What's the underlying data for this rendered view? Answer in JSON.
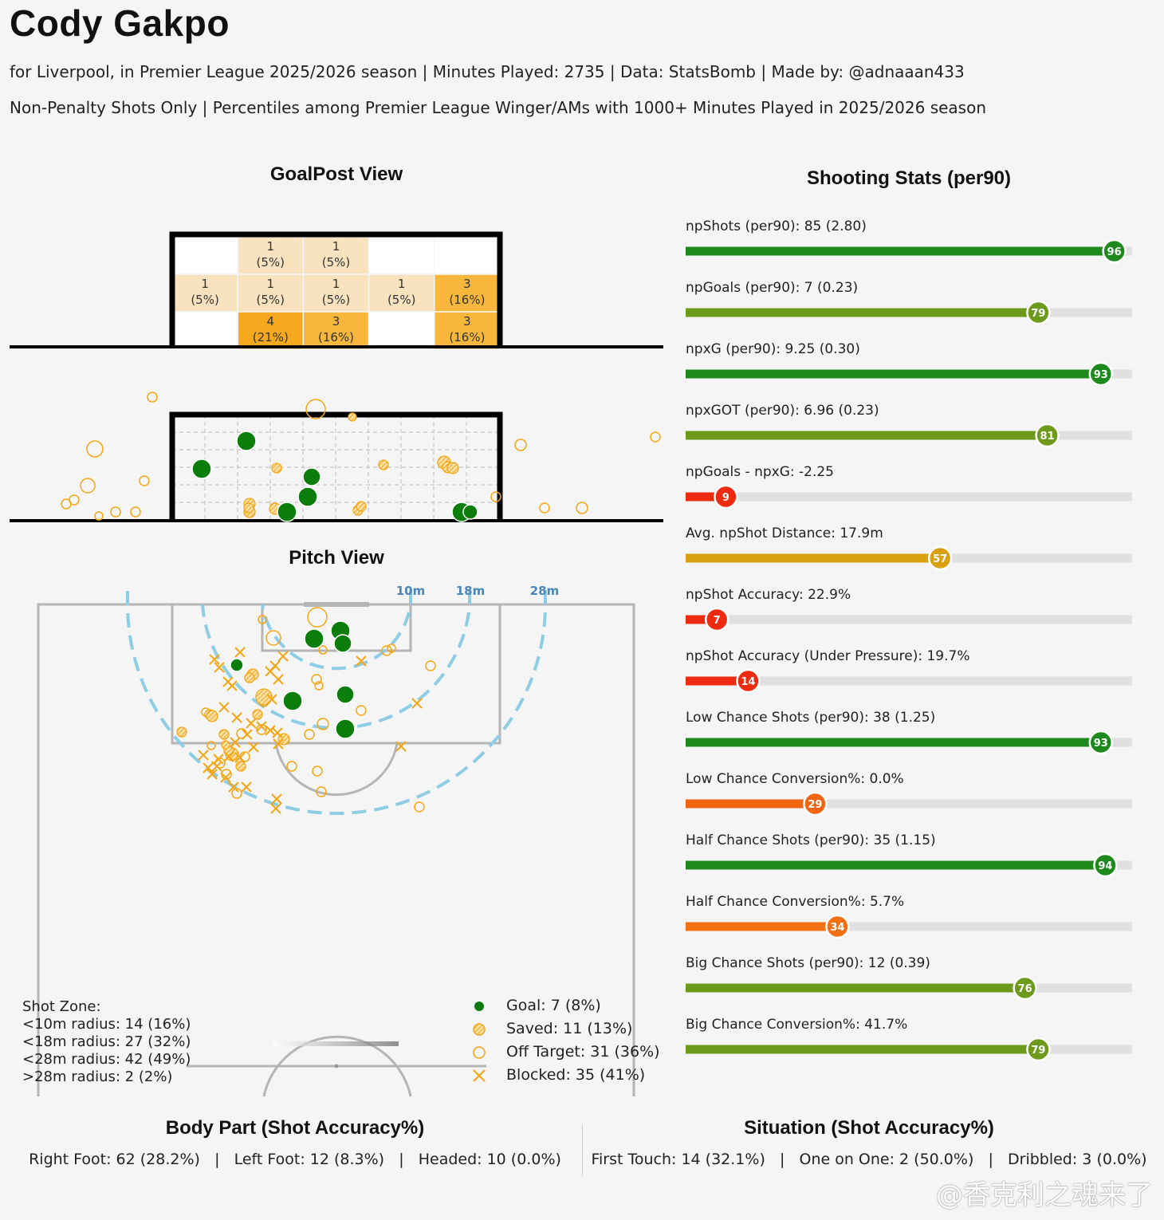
{
  "header": {
    "title": "Cody Gakpo",
    "subtitle1": "for Liverpool, in Premier League 2025/2026 season | Minutes Played: 2735 | Data: StatsBomb | Made by: @adnaaan433",
    "subtitle2": "Non-Penalty Shots Only | Percentiles among Premier League Winger/AMs with 1000+ Minutes Played in 2025/2026 season"
  },
  "goalpost": {
    "title": "GoalPost View",
    "zones": [
      {
        "row": 0,
        "col": 1,
        "count": "1",
        "pct": "(5%)",
        "shade": "light"
      },
      {
        "row": 0,
        "col": 2,
        "count": "1",
        "pct": "(5%)",
        "shade": "light"
      },
      {
        "row": 1,
        "col": 0,
        "count": "1",
        "pct": "(5%)",
        "shade": "light"
      },
      {
        "row": 1,
        "col": 1,
        "count": "1",
        "pct": "(5%)",
        "shade": "light"
      },
      {
        "row": 1,
        "col": 2,
        "count": "1",
        "pct": "(5%)",
        "shade": "light"
      },
      {
        "row": 1,
        "col": 3,
        "count": "1",
        "pct": "(5%)",
        "shade": "light"
      },
      {
        "row": 1,
        "col": 4,
        "count": "3",
        "pct": "(16%)",
        "shade": "mid"
      },
      {
        "row": 2,
        "col": 1,
        "count": "4",
        "pct": "(21%)",
        "shade": "dark"
      },
      {
        "row": 2,
        "col": 2,
        "count": "3",
        "pct": "(16%)",
        "shade": "mid"
      },
      {
        "row": 2,
        "col": 4,
        "count": "3",
        "pct": "(16%)",
        "shade": "mid"
      }
    ],
    "colors": {
      "light": "#f9e3bf",
      "mid": "#f8b73a",
      "dark": "#f6a81e",
      "empty": "#ffffff"
    }
  },
  "pitch": {
    "title": "Pitch View",
    "ring_labels": [
      "10m",
      "18m",
      "28m"
    ],
    "shot_zone_title": "Shot Zone:",
    "shot_zones": [
      "<10m radius: 14 (16%)",
      "<18m radius: 27 (32%)",
      "<28m radius: 42 (49%)",
      ">28m radius: 2 (2%)"
    ],
    "legend": [
      {
        "type": "goal",
        "label": "Goal: 7 (8%)"
      },
      {
        "type": "saved",
        "label": "Saved: 11 (13%)"
      },
      {
        "type": "off",
        "label": "Off Target: 31 (36%)"
      },
      {
        "type": "blocked",
        "label": "Blocked: 35 (41%)"
      }
    ]
  },
  "stats": {
    "title": "Shooting Stats (per90)",
    "items": [
      {
        "label": "npShots (per90): 85 (2.80)",
        "pct": 96,
        "color": "#1e8a1e"
      },
      {
        "label": "npGoals (per90): 7 (0.23)",
        "pct": 79,
        "color": "#6e9a1c"
      },
      {
        "label": "npxG (per90): 9.25 (0.30)",
        "pct": 93,
        "color": "#1e8a1e"
      },
      {
        "label": "npxGOT (per90): 6.96 (0.23)",
        "pct": 81,
        "color": "#6e9a1c"
      },
      {
        "label": "npGoals - npxG: -2.25",
        "pct": 9,
        "color": "#ee2a10"
      },
      {
        "label": "Avg. npShot Distance: 17.9m",
        "pct": 57,
        "color": "#d9a10f"
      },
      {
        "label": "npShot Accuracy: 22.9%",
        "pct": 7,
        "color": "#ee2a10"
      },
      {
        "label": "npShot Accuracy (Under Pressure): 19.7%",
        "pct": 14,
        "color": "#ee2a10"
      },
      {
        "label": "Low Chance Shots (per90): 38 (1.25)",
        "pct": 93,
        "color": "#1e8a1e"
      },
      {
        "label": "Low Chance Conversion%: 0.0%",
        "pct": 29,
        "color": "#f26512"
      },
      {
        "label": "Half Chance Shots (per90): 35 (1.15)",
        "pct": 94,
        "color": "#1e8a1e"
      },
      {
        "label": "Half Chance Conversion%: 5.7%",
        "pct": 34,
        "color": "#f27012"
      },
      {
        "label": "Big Chance Shots (per90): 12 (0.39)",
        "pct": 76,
        "color": "#6e9a1c"
      },
      {
        "label": "Big Chance Conversion%: 41.7%",
        "pct": 79,
        "color": "#6e9a1c"
      }
    ]
  },
  "body_part": {
    "title": "Body Part (Shot Accuracy%)",
    "line": "Right Foot: 62 (28.2%)   |   Left Foot: 12 (8.3%)   |   Headed: 10 (0.0%)"
  },
  "situation": {
    "title": "Situation (Shot Accuracy%)",
    "line": "First Touch: 14 (32.1%)   |   One on One: 2 (50.0%)   |   Dribbled: 3 (0.0%)"
  },
  "watermark": "@香克利之魂来了",
  "colors": {
    "goal": "#0a7d0a",
    "shot": "#f5a614",
    "ring": "#8ecde6",
    "line": "#b5b5b5",
    "ring_label": "#4a86b8"
  }
}
